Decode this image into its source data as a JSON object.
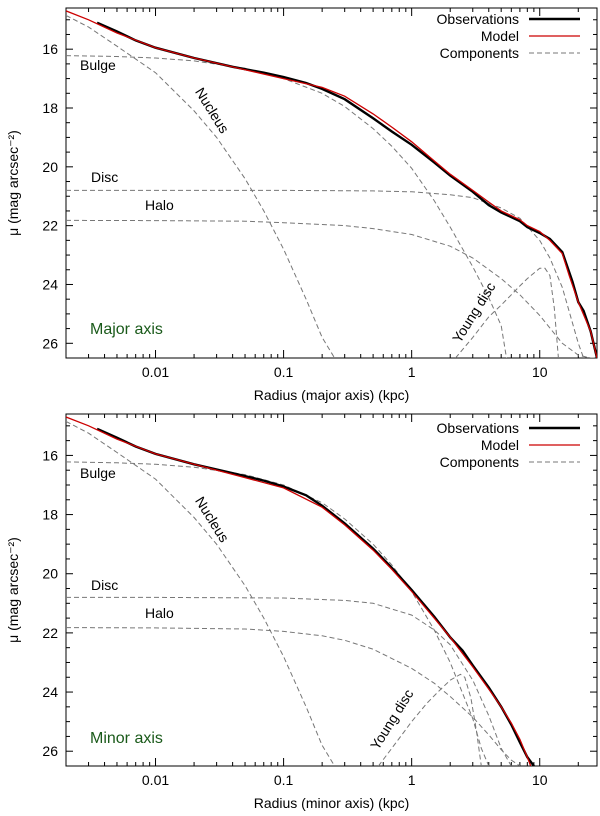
{
  "chart_data": [
    {
      "type": "line",
      "panel": "top",
      "xlabel": "Radius (major axis)  (kpc)",
      "ylabel": "μ  (mag arcsec⁻²)",
      "xscale": "log",
      "xlim": [
        0.002,
        28
      ],
      "ylim": [
        26.5,
        14.6
      ],
      "x_ticks": [
        0.01,
        0.1,
        1,
        10
      ],
      "x_tick_labels": [
        "0.01",
        "0.1",
        "1",
        "10"
      ],
      "y_ticks": [
        16,
        18,
        20,
        22,
        24,
        26
      ],
      "y_tick_labels": [
        "16",
        "18",
        "20",
        "22",
        "24",
        "26"
      ],
      "panel_label": "Major axis",
      "panel_label_color": "#1a5a1a",
      "legend": {
        "position": "top-right",
        "entries": [
          {
            "label": "Observations",
            "color": "#000000",
            "style": "solid-thick"
          },
          {
            "label": "Model",
            "color": "#cc0000",
            "style": "solid"
          },
          {
            "label": "Components",
            "color": "#777777",
            "style": "dashed"
          }
        ]
      },
      "component_labels": [
        "Bulge",
        "Nucleus",
        "Disc",
        "Halo",
        "Young disc"
      ],
      "series": [
        {
          "name": "Observations",
          "color": "#000000",
          "x": [
            0.0035,
            0.005,
            0.007,
            0.01,
            0.02,
            0.04,
            0.07,
            0.1,
            0.15,
            0.2,
            0.3,
            0.5,
            0.7,
            1,
            1.5,
            2,
            3,
            4,
            5,
            7,
            8,
            10,
            12,
            15,
            18,
            20,
            22,
            25,
            28
          ],
          "y": [
            15.1,
            15.4,
            15.7,
            15.95,
            16.3,
            16.6,
            16.8,
            16.95,
            17.15,
            17.35,
            17.7,
            18.35,
            18.8,
            19.25,
            19.85,
            20.3,
            20.85,
            21.3,
            21.55,
            21.85,
            22.05,
            22.25,
            22.45,
            22.9,
            23.9,
            24.6,
            24.9,
            25.6,
            26.5
          ]
        },
        {
          "name": "Model",
          "color": "#cc0000",
          "x": [
            0.002,
            0.003,
            0.005,
            0.01,
            0.02,
            0.05,
            0.1,
            0.2,
            0.3,
            0.5,
            0.7,
            1,
            1.5,
            2,
            3,
            4,
            5,
            7,
            8,
            10,
            12,
            15,
            17,
            20,
            25,
            28
          ],
          "y": [
            14.7,
            15.0,
            15.45,
            15.95,
            16.3,
            16.7,
            17.0,
            17.3,
            17.6,
            18.2,
            18.65,
            19.15,
            19.8,
            20.25,
            20.8,
            21.2,
            21.5,
            21.8,
            22.0,
            22.2,
            22.5,
            22.95,
            23.7,
            24.6,
            25.6,
            26.5
          ]
        },
        {
          "name": "Bulge",
          "color": "#777777",
          "dash": true,
          "x": [
            0.002,
            0.005,
            0.01,
            0.02,
            0.05,
            0.1,
            0.2,
            0.3,
            0.5,
            0.7,
            1,
            1.5,
            2,
            3,
            4,
            5,
            5.5
          ],
          "y": [
            16.22,
            16.25,
            16.3,
            16.4,
            16.65,
            17.0,
            17.5,
            17.95,
            18.7,
            19.3,
            20.05,
            21.15,
            22.05,
            23.4,
            24.45,
            25.4,
            26.5
          ]
        },
        {
          "name": "Nucleus",
          "color": "#777777",
          "dash": true,
          "x": [
            0.002,
            0.003,
            0.005,
            0.01,
            0.02,
            0.03,
            0.05,
            0.07,
            0.1,
            0.15,
            0.2,
            0.25
          ],
          "y": [
            14.85,
            15.25,
            15.9,
            16.8,
            18.1,
            19.0,
            20.4,
            21.5,
            22.8,
            24.5,
            25.8,
            26.5
          ]
        },
        {
          "name": "Disc",
          "color": "#777777",
          "dash": true,
          "x": [
            0.002,
            0.01,
            0.1,
            0.5,
            1,
            2,
            3,
            5,
            7,
            10,
            12,
            15,
            18,
            20,
            22
          ],
          "y": [
            20.8,
            20.8,
            20.8,
            20.82,
            20.85,
            20.95,
            21.05,
            21.4,
            21.75,
            22.5,
            23.1,
            24.1,
            25.3,
            26.0,
            26.5
          ]
        },
        {
          "name": "Halo",
          "color": "#777777",
          "dash": true,
          "x": [
            0.002,
            0.01,
            0.05,
            0.1,
            0.3,
            0.5,
            1,
            2,
            3,
            5,
            7,
            10,
            15,
            20,
            25,
            28
          ],
          "y": [
            21.82,
            21.83,
            21.85,
            21.9,
            22.0,
            22.1,
            22.3,
            22.7,
            23.1,
            23.8,
            24.35,
            25.05,
            26.0,
            26.4,
            26.5,
            26.5
          ]
        },
        {
          "name": "Young disc",
          "color": "#777777",
          "dash": true,
          "x": [
            2.2,
            3,
            4,
            5,
            6,
            7,
            8,
            10,
            11,
            12,
            13,
            14
          ],
          "y": [
            26.5,
            25.8,
            25.1,
            24.7,
            24.35,
            24.05,
            23.8,
            23.45,
            23.45,
            23.7,
            24.8,
            26.5
          ]
        }
      ]
    },
    {
      "type": "line",
      "panel": "bottom",
      "xlabel": "Radius (minor axis)  (kpc)",
      "ylabel": "μ  (mag arcsec⁻²)",
      "xscale": "log",
      "xlim": [
        0.002,
        28
      ],
      "ylim": [
        26.5,
        14.6
      ],
      "x_ticks": [
        0.01,
        0.1,
        1,
        10
      ],
      "x_tick_labels": [
        "0.01",
        "0.1",
        "1",
        "10"
      ],
      "y_ticks": [
        16,
        18,
        20,
        22,
        24,
        26
      ],
      "y_tick_labels": [
        "16",
        "18",
        "20",
        "22",
        "24",
        "26"
      ],
      "panel_label": "Minor axis",
      "panel_label_color": "#1a5a1a",
      "legend": {
        "position": "top-right",
        "entries": [
          {
            "label": "Observations",
            "color": "#000000",
            "style": "solid-thick"
          },
          {
            "label": "Model",
            "color": "#cc0000",
            "style": "solid"
          },
          {
            "label": "Components",
            "color": "#777777",
            "style": "dashed"
          }
        ]
      },
      "component_labels": [
        "Bulge",
        "Nucleus",
        "Disc",
        "Halo",
        "Young disc"
      ],
      "series": [
        {
          "name": "Observations",
          "color": "#000000",
          "x": [
            0.0035,
            0.005,
            0.007,
            0.01,
            0.02,
            0.04,
            0.07,
            0.1,
            0.15,
            0.2,
            0.3,
            0.5,
            0.7,
            1,
            1.5,
            2,
            2.5,
            3,
            4,
            5,
            6,
            7,
            8,
            9
          ],
          "y": [
            15.1,
            15.4,
            15.7,
            15.95,
            16.3,
            16.6,
            16.85,
            17.05,
            17.35,
            17.7,
            18.3,
            19.15,
            19.8,
            20.55,
            21.45,
            22.15,
            22.6,
            23.1,
            23.85,
            24.5,
            25.1,
            25.7,
            26.2,
            26.5
          ]
        },
        {
          "name": "Model",
          "color": "#cc0000",
          "x": [
            0.002,
            0.003,
            0.005,
            0.01,
            0.02,
            0.05,
            0.1,
            0.2,
            0.3,
            0.5,
            0.7,
            1,
            1.5,
            2,
            3,
            4,
            5,
            6,
            7,
            8,
            8.5
          ],
          "y": [
            14.7,
            15.0,
            15.45,
            15.95,
            16.3,
            16.75,
            17.1,
            17.75,
            18.35,
            19.2,
            19.85,
            20.6,
            21.5,
            22.15,
            23.15,
            23.9,
            24.5,
            25.05,
            25.6,
            26.2,
            26.5
          ]
        },
        {
          "name": "Bulge",
          "color": "#777777",
          "dash": true,
          "x": [
            0.002,
            0.005,
            0.01,
            0.02,
            0.05,
            0.1,
            0.2,
            0.3,
            0.5,
            0.7,
            1,
            1.5,
            2,
            3,
            3.5,
            4
          ],
          "y": [
            16.22,
            16.25,
            16.3,
            16.4,
            16.65,
            17.0,
            17.6,
            18.15,
            19.0,
            19.7,
            20.6,
            21.9,
            23.0,
            24.9,
            25.9,
            26.5
          ]
        },
        {
          "name": "Nucleus",
          "color": "#777777",
          "dash": true,
          "x": [
            0.002,
            0.003,
            0.005,
            0.01,
            0.02,
            0.03,
            0.05,
            0.07,
            0.1,
            0.15,
            0.2,
            0.25
          ],
          "y": [
            14.85,
            15.25,
            15.9,
            16.8,
            18.1,
            19.0,
            20.4,
            21.5,
            22.8,
            24.5,
            25.8,
            26.5
          ]
        },
        {
          "name": "Disc",
          "color": "#777777",
          "dash": true,
          "x": [
            0.002,
            0.01,
            0.1,
            0.3,
            0.5,
            1,
            1.5,
            2,
            3,
            4,
            5,
            6
          ],
          "y": [
            20.8,
            20.8,
            20.82,
            20.9,
            21.0,
            21.4,
            21.9,
            22.4,
            23.6,
            24.8,
            25.9,
            26.5
          ]
        },
        {
          "name": "Halo",
          "color": "#777777",
          "dash": true,
          "x": [
            0.002,
            0.01,
            0.05,
            0.1,
            0.2,
            0.3,
            0.5,
            1,
            1.5,
            2,
            3,
            4,
            5,
            6,
            7
          ],
          "y": [
            21.82,
            21.83,
            21.87,
            21.95,
            22.1,
            22.25,
            22.55,
            23.2,
            23.7,
            24.15,
            24.85,
            25.45,
            25.95,
            26.3,
            26.5
          ]
        },
        {
          "name": "Young disc",
          "color": "#777777",
          "dash": true,
          "x": [
            0.55,
            0.7,
            1,
            1.3,
            1.6,
            2,
            2.4,
            2.6,
            2.9,
            3.2,
            3.5
          ],
          "y": [
            26.5,
            25.9,
            25.0,
            24.4,
            24.0,
            23.6,
            23.4,
            23.5,
            24.2,
            25.3,
            26.5
          ]
        }
      ]
    }
  ]
}
